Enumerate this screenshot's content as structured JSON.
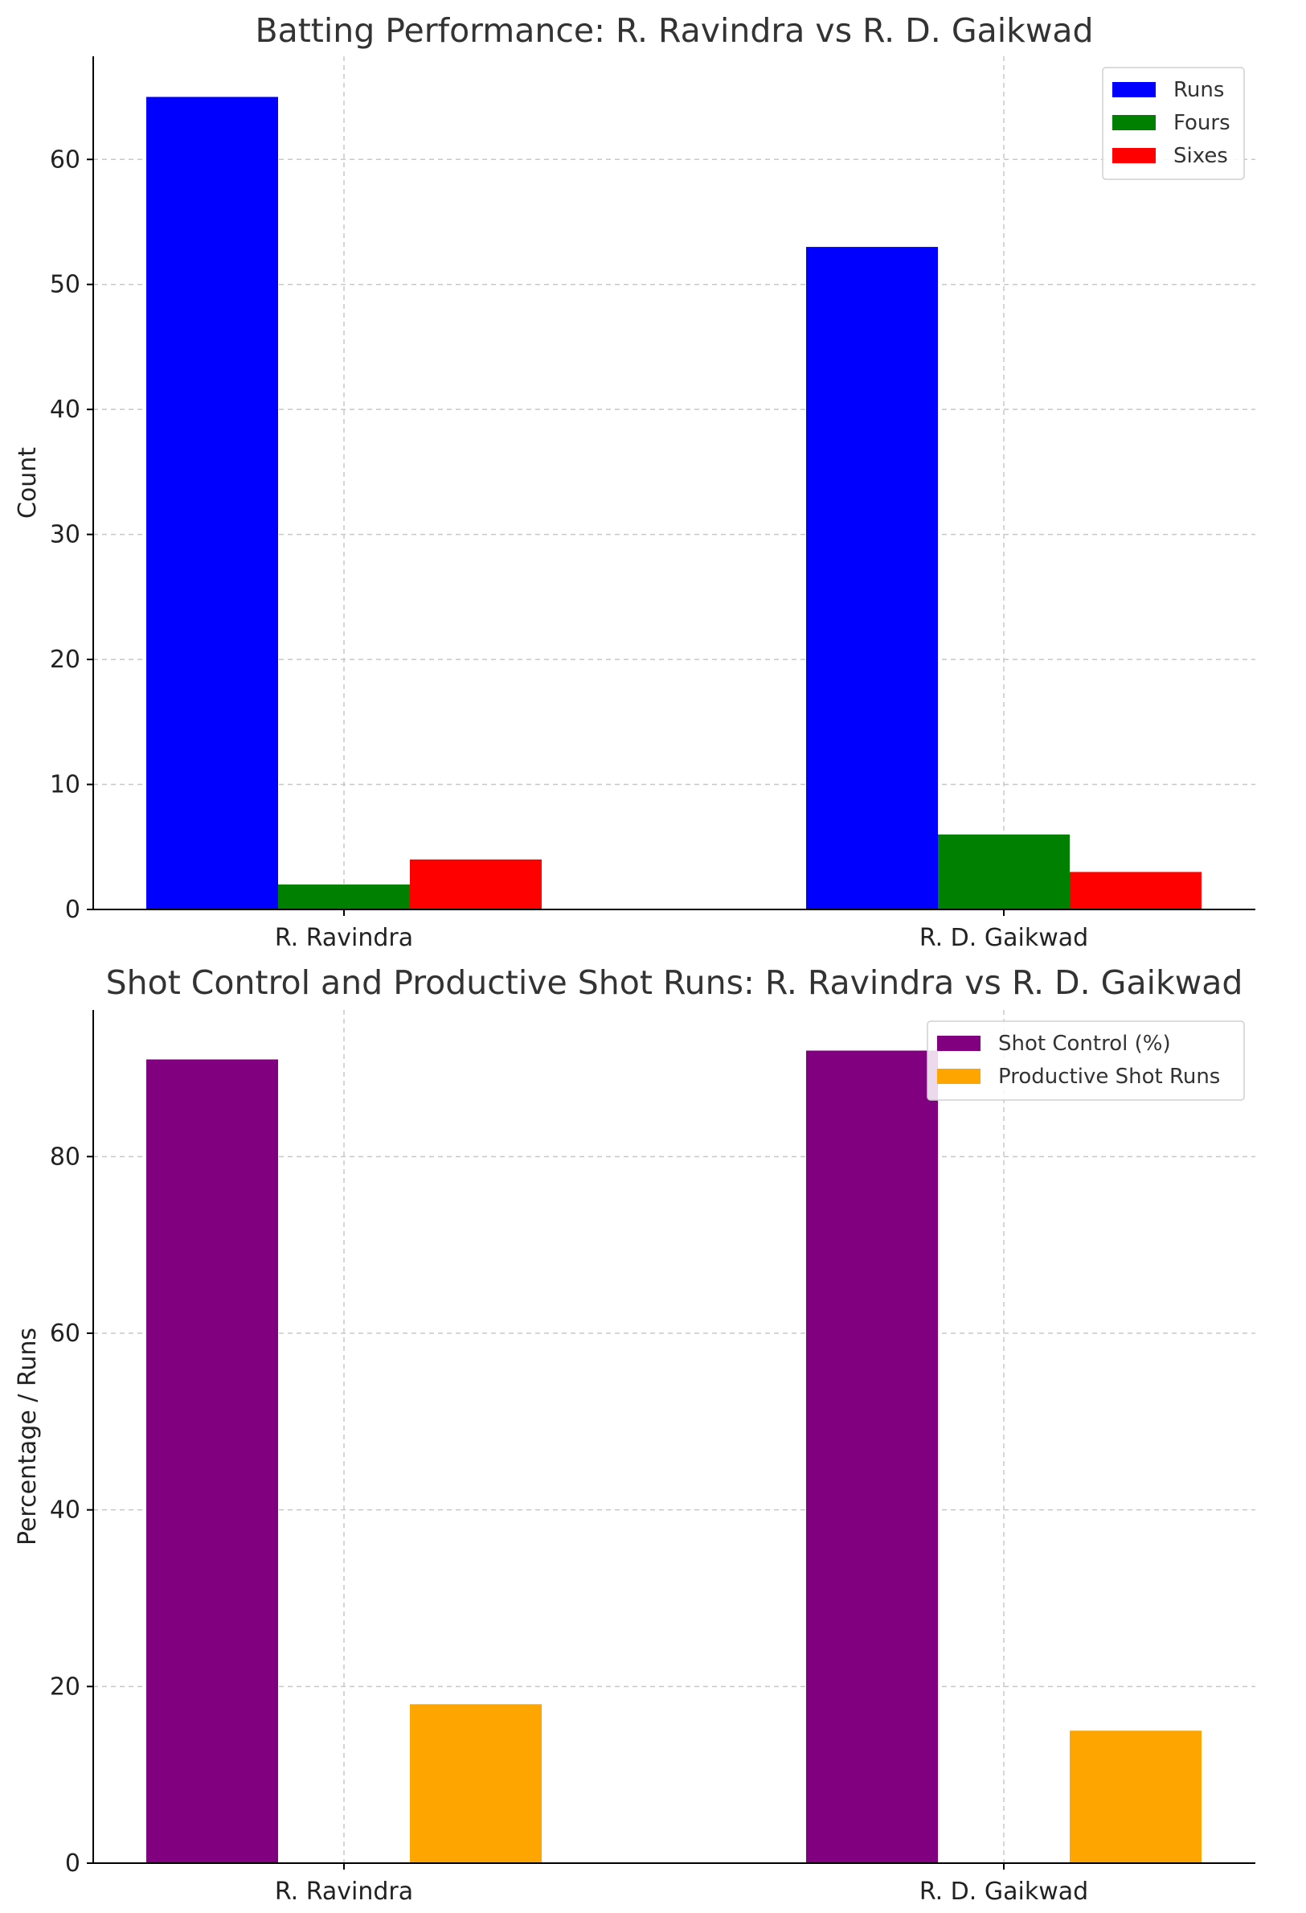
{
  "chart_data": [
    {
      "type": "bar",
      "title": "Batting Performance: R. Ravindra vs R. D. Gaikwad",
      "xlabel": "",
      "ylabel": "Count",
      "categories": [
        "R. Ravindra",
        "R. D. Gaikwad"
      ],
      "series": [
        {
          "name": "Runs",
          "values": [
            65,
            53
          ],
          "color": "#0000ff"
        },
        {
          "name": "Fours",
          "values": [
            2,
            6
          ],
          "color": "#008000"
        },
        {
          "name": "Sixes",
          "values": [
            4,
            3
          ],
          "color": "#ff0000"
        }
      ],
      "ylim": [
        0,
        68.25
      ],
      "yticks": [
        0,
        10,
        20,
        30,
        40,
        50,
        60
      ],
      "grid": true,
      "legend": "top-right"
    },
    {
      "type": "bar",
      "title": "Shot Control and Productive Shot Runs: R. Ravindra vs R. D. Gaikwad",
      "xlabel": "",
      "ylabel": "Percentage / Runs",
      "categories": [
        "R. Ravindra",
        "R. D. Gaikwad"
      ],
      "series": [
        {
          "name": "Shot Control (%)",
          "values": [
            91,
            92
          ],
          "color": "#800080"
        },
        {
          "name": "Productive Shot Runs",
          "values": [
            18,
            15
          ],
          "color": "#ffa500"
        }
      ],
      "ylim": [
        0,
        96.6
      ],
      "yticks": [
        0,
        20,
        40,
        60,
        80
      ],
      "grid": true,
      "legend": "top-right"
    }
  ]
}
